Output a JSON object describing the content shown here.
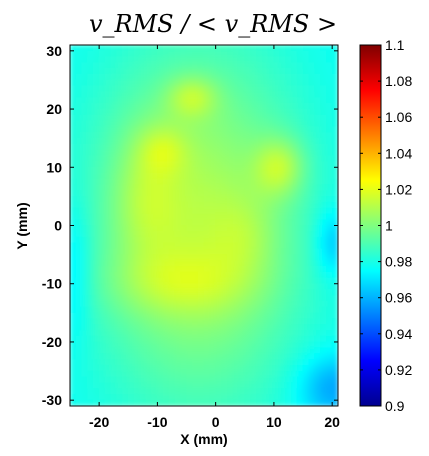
{
  "chart_data": {
    "type": "heatmap",
    "title": "v_RMS / < v_RMS >",
    "xlabel": "X (mm)",
    "ylabel": "Y (mm)",
    "xlim": [
      -25,
      21
    ],
    "ylim": [
      -31,
      31
    ],
    "xticks": [
      -20,
      -10,
      0,
      10,
      20
    ],
    "yticks": [
      -30,
      -20,
      -10,
      0,
      10,
      20,
      30
    ],
    "colorbar": {
      "min": 0.9,
      "max": 1.1,
      "ticks": [
        "0.9",
        "0.92",
        "0.94",
        "0.96",
        "0.98",
        "1",
        "1.02",
        "1.04",
        "1.06",
        "1.08",
        "1.1"
      ],
      "colormap": "jet"
    },
    "field": {
      "background_value": 0.975,
      "blobs": [
        {
          "x": -3,
          "y": 0,
          "sx": 13,
          "sy": 22,
          "amp": 0.035
        },
        {
          "x": -12,
          "y": 5,
          "sx": 4,
          "sy": 8,
          "amp": 0.012
        },
        {
          "x": -6,
          "y": -10,
          "sx": 9,
          "sy": 4,
          "amp": 0.012
        },
        {
          "x": -4,
          "y": 22,
          "sx": 3,
          "sy": 2.5,
          "amp": 0.018
        },
        {
          "x": -9,
          "y": 13,
          "sx": 3,
          "sy": 3,
          "amp": 0.012
        },
        {
          "x": 11,
          "y": 10,
          "sx": 3,
          "sy": 3.5,
          "amp": 0.022
        },
        {
          "x": 5,
          "y": -2,
          "sx": 4,
          "sy": 5,
          "amp": 0.008
        },
        {
          "x": 20,
          "y": -28,
          "sx": 4,
          "sy": 4,
          "amp": -0.02
        },
        {
          "x": 20,
          "y": -3,
          "sx": 2,
          "sy": 4,
          "amp": -0.015
        },
        {
          "x": -24,
          "y": -8,
          "sx": 2,
          "sy": 8,
          "amp": -0.01
        }
      ]
    }
  }
}
